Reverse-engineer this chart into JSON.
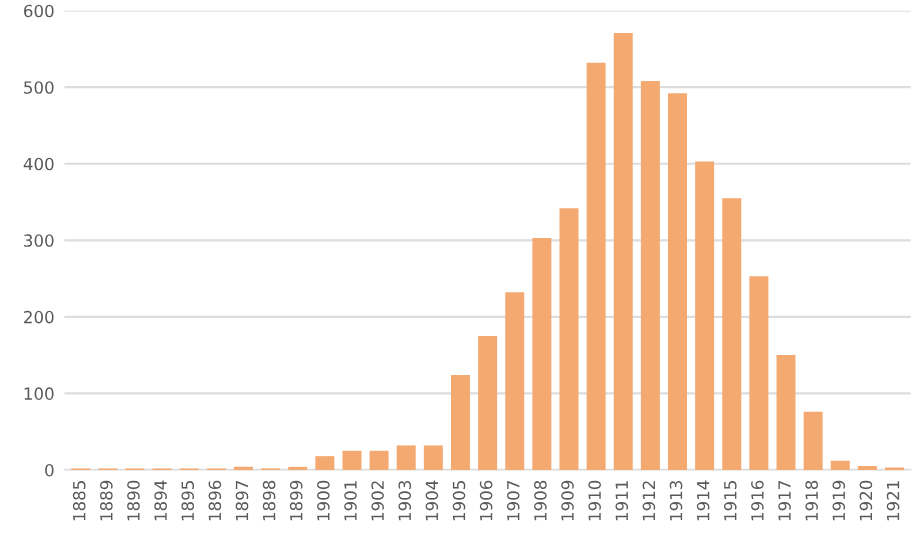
{
  "chart_data": {
    "type": "bar",
    "categories": [
      "1885",
      "1889",
      "1890",
      "1894",
      "1895",
      "1896",
      "1897",
      "1898",
      "1899",
      "1900",
      "1901",
      "1902",
      "1903",
      "1904",
      "1905",
      "1906",
      "1907",
      "1908",
      "1909",
      "1910",
      "1911",
      "1912",
      "1913",
      "1914",
      "1915",
      "1916",
      "1917",
      "1918",
      "1919",
      "1920",
      "1921"
    ],
    "values": [
      2,
      2,
      2,
      2,
      2,
      2,
      4,
      2,
      4,
      18,
      25,
      25,
      32,
      32,
      124,
      175,
      232,
      303,
      342,
      532,
      571,
      508,
      492,
      403,
      355,
      253,
      150,
      76,
      12,
      5,
      3
    ],
    "color": "#f4a971",
    "ylim": [
      0,
      600
    ],
    "yticks": [
      0,
      100,
      200,
      300,
      400,
      500,
      600
    ],
    "grid": "y"
  }
}
